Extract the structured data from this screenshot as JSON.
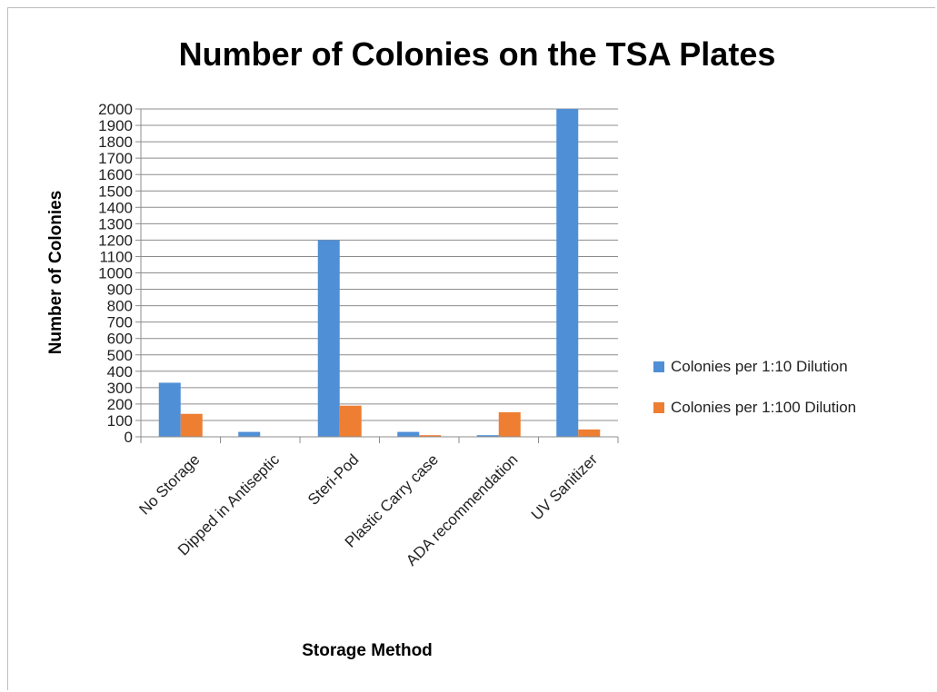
{
  "chart_data": {
    "type": "bar",
    "title": "Number of Colonies on the TSA Plates",
    "xlabel": "Storage Method",
    "ylabel": "Number of Colonies",
    "categories": [
      "No Storage",
      "Dipped in Antiseptic",
      "Steri-Pod",
      "Plastic Carry case",
      "ADA recommendation",
      "UV Sanitizer"
    ],
    "series": [
      {
        "name": "Colonies per 1:10 Dilution",
        "color": "#4f8fd6",
        "values": [
          330,
          30,
          1200,
          30,
          10,
          2000
        ]
      },
      {
        "name": "Colonies per 1:100 Dilution",
        "color": "#ee7e32",
        "values": [
          140,
          0,
          190,
          10,
          150,
          45
        ]
      }
    ],
    "ylim": [
      0,
      2000
    ],
    "ytick_step": 100,
    "grid": true,
    "legend_position": "right"
  }
}
